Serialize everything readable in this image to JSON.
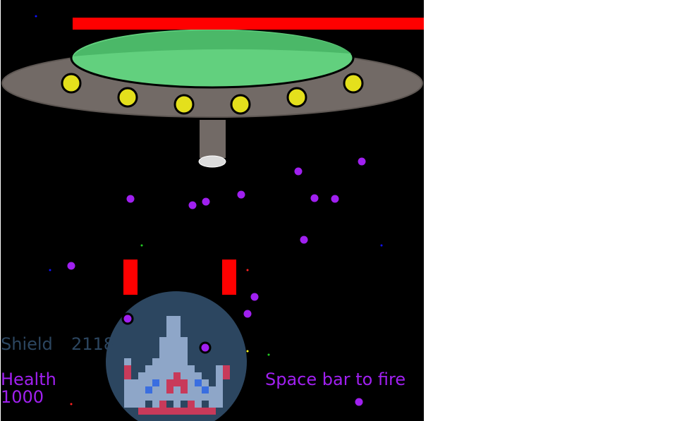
{
  "hud": {
    "shield_label": "Shield",
    "shield_value": "2118",
    "health_label": "Health",
    "health_value": "1000",
    "fire_hint": "Space bar to fire"
  },
  "boss": {
    "health_fraction": 0.83
  },
  "colors": {
    "background": "#000000",
    "boss_health_bar": "#ff0000",
    "saucer_body": "#726a66",
    "saucer_dome": "#62d07e",
    "saucer_lights": "#e4e01c",
    "player_shield": "#2c4660",
    "enemy_bullets": "#a020f0",
    "player_lasers": "#ff0000",
    "hud_shield_text": "#2c4660",
    "hud_health_text": "#a020f0"
  },
  "icons": {
    "boss": "flying-saucer-icon",
    "player": "pixel-spaceship-icon"
  }
}
